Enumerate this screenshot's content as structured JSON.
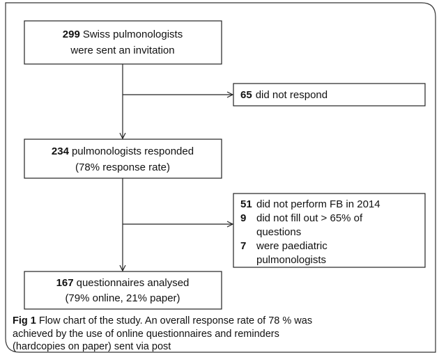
{
  "main": [
    {
      "number": "299",
      "lines": [
        "Swiss pulmonologists",
        "were sent an invitation"
      ]
    },
    {
      "number": "234",
      "lines": [
        "pulmonologists responded",
        "(78% response rate)"
      ]
    },
    {
      "number": "167",
      "lines": [
        "questionnaires analysed",
        "(79% online, 21% paper)"
      ]
    }
  ],
  "side": [
    {
      "items": [
        {
          "number": "65",
          "lines": [
            "did not respond"
          ]
        }
      ]
    },
    {
      "items": [
        {
          "number": "51",
          "lines": [
            "did not perform FB in 2014"
          ]
        },
        {
          "number": "9",
          "lines": [
            "did not fill out > 65% of",
            "questions"
          ]
        },
        {
          "number": "7",
          "lines": [
            "were paediatric",
            "pulmonologists"
          ]
        }
      ]
    }
  ],
  "caption": {
    "label": "Fig 1",
    "text": [
      "Flow chart of the study. An overall response rate of 78 % was",
      "achieved by the use of online questionnaires and reminders",
      "(hardcopies on paper) sent via post"
    ]
  }
}
